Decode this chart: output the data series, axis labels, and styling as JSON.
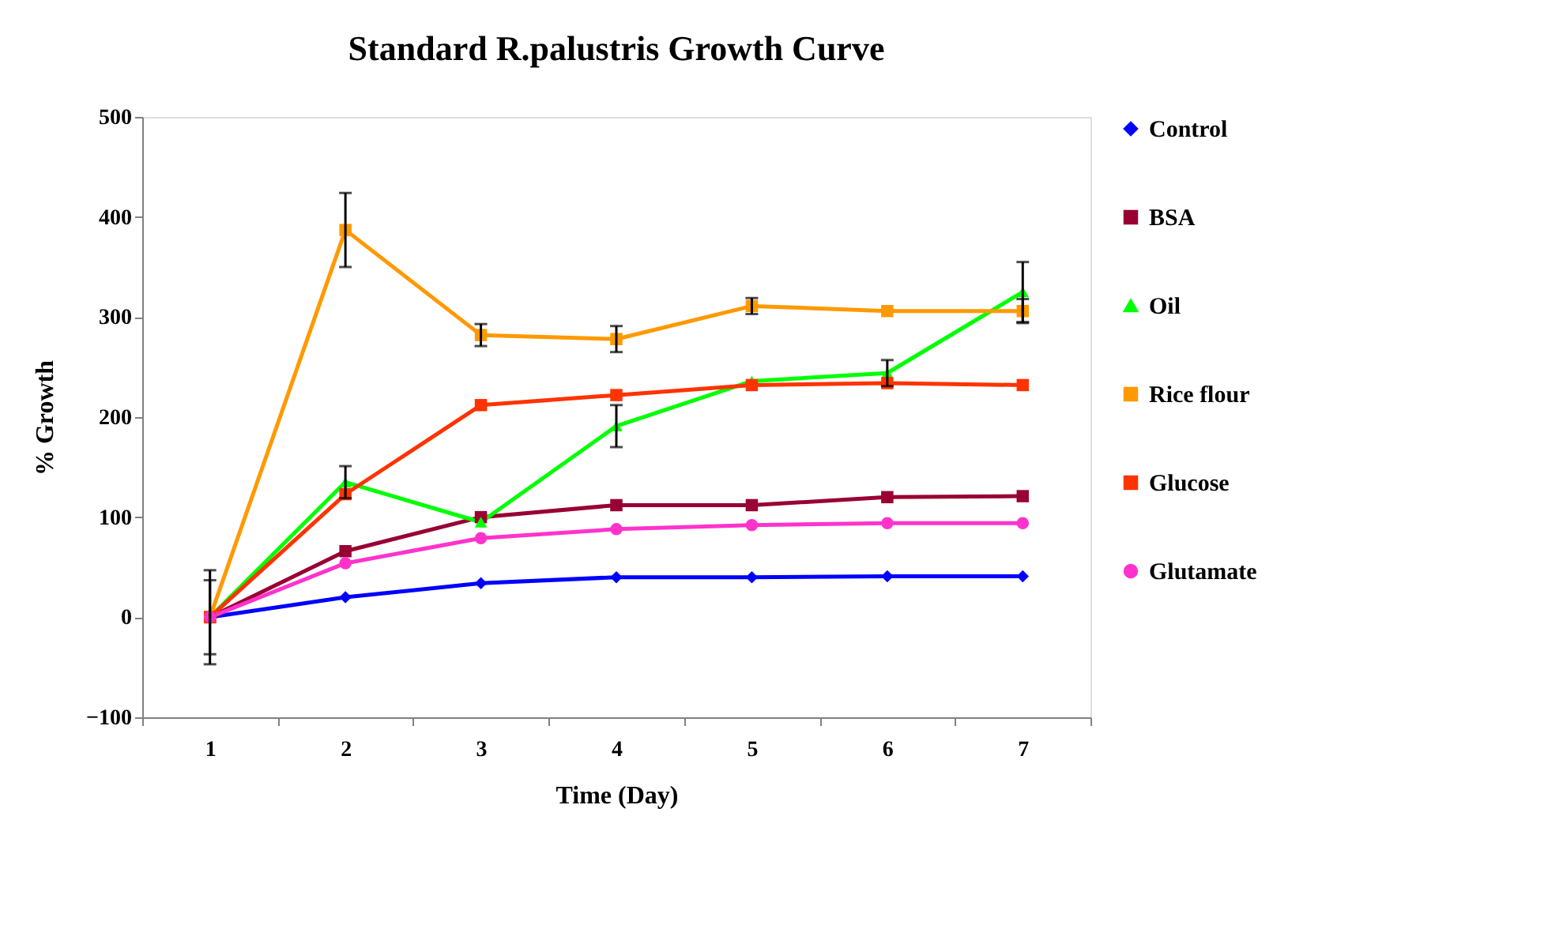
{
  "chart_data": {
    "type": "line",
    "title": "Standard R.palustris Growth Curve",
    "xlabel": "Time (Day)",
    "ylabel": "% Growth",
    "categories": [
      "1",
      "2",
      "3",
      "4",
      "5",
      "6",
      "7"
    ],
    "ylim": [
      -100,
      500
    ],
    "yticks": [
      -100,
      0,
      100,
      200,
      300,
      400,
      500
    ],
    "grid": false,
    "legend": "right",
    "line_style": "solid",
    "series": [
      {
        "name": "Control",
        "color": "#0000ff",
        "marker": "diamond",
        "values": [
          0,
          20,
          34,
          40,
          40,
          41,
          41
        ],
        "errors": [
          37,
          null,
          null,
          null,
          null,
          null,
          null
        ]
      },
      {
        "name": "BSA",
        "color": "#990033",
        "marker": "square",
        "values": [
          0,
          66,
          100,
          112,
          112,
          120,
          121
        ]
      },
      {
        "name": "Oil",
        "color": "#00ff00",
        "marker": "triangle",
        "values": [
          0,
          135,
          95,
          191,
          236,
          244,
          325
        ],
        "errors": [
          null,
          16,
          null,
          21,
          null,
          13,
          30
        ]
      },
      {
        "name": "Rice flour",
        "color": "#ff9900",
        "marker": "square",
        "values": [
          0,
          387,
          282,
          278,
          311,
          306,
          306
        ],
        "errors": [
          47,
          37,
          11,
          13,
          8,
          null,
          12
        ]
      },
      {
        "name": "Glucose",
        "color": "#ff3300",
        "marker": "square",
        "values": [
          0,
          123,
          212,
          222,
          232,
          234,
          232
        ]
      },
      {
        "name": "Glutamate",
        "color": "#ff33cc",
        "marker": "circle",
        "values": [
          0,
          54,
          79,
          88,
          92,
          94,
          94
        ]
      }
    ]
  }
}
